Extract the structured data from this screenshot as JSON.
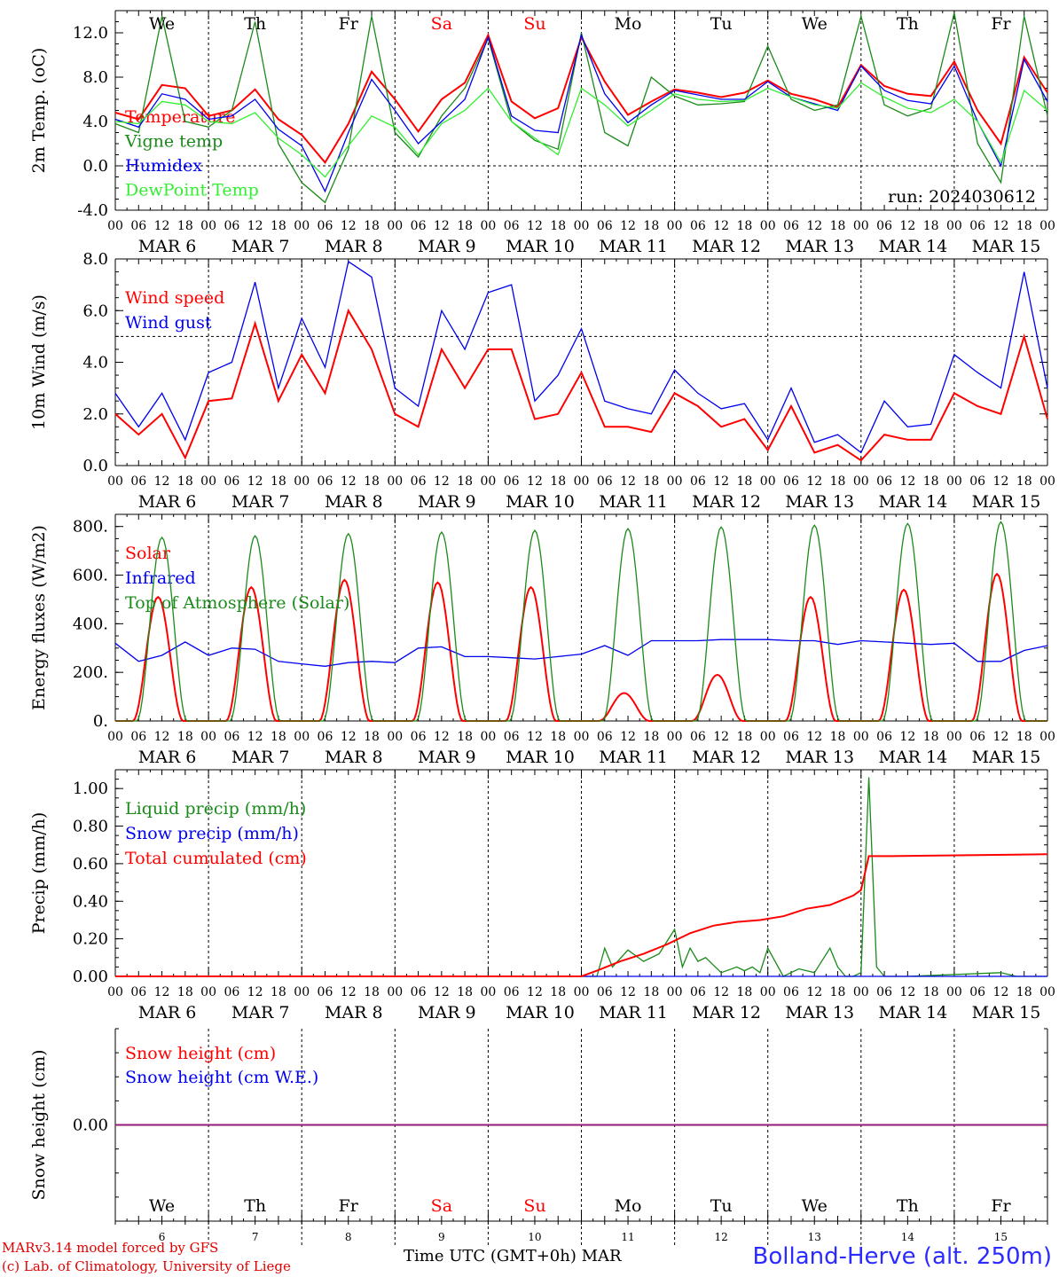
{
  "meta": {
    "run": "run: 2024030612",
    "credit_line1": "MARv3.14 model forced by GFS",
    "credit_line2": "(c) Lab. of Climatology, University of Liege",
    "time_axis_label": "Time UTC (GMT+0h) MAR",
    "station": "Bolland-Herve (alt. 250m)"
  },
  "days": [
    {
      "abbr": "We",
      "month": "MAR",
      "num": "6",
      "weekend": false
    },
    {
      "abbr": "Th",
      "month": "MAR",
      "num": "7",
      "weekend": false
    },
    {
      "abbr": "Fr",
      "month": "MAR",
      "num": "8",
      "weekend": false
    },
    {
      "abbr": "Sa",
      "month": "MAR",
      "num": "9",
      "weekend": true
    },
    {
      "abbr": "Su",
      "month": "MAR",
      "num": "10",
      "weekend": true
    },
    {
      "abbr": "Mo",
      "month": "MAR",
      "num": "11",
      "weekend": false
    },
    {
      "abbr": "Tu",
      "month": "MAR",
      "num": "12",
      "weekend": false
    },
    {
      "abbr": "We",
      "month": "MAR",
      "num": "13",
      "weekend": false
    },
    {
      "abbr": "Th",
      "month": "MAR",
      "num": "14",
      "weekend": false
    },
    {
      "abbr": "Fr",
      "month": "MAR",
      "num": "15",
      "weekend": false
    }
  ],
  "hour_ticks": [
    "00",
    "06",
    "12",
    "18"
  ],
  "colors": {
    "red": "#ff0000",
    "green": "#1a8a1a",
    "blue": "#0000ee",
    "lightgreen": "#33ee33",
    "purple": "#882288"
  },
  "chart_data": [
    {
      "type": "line",
      "id": "temp",
      "ylabel": "2m Temp. (oC)",
      "ylim": [
        -4,
        14
      ],
      "yticks": [
        "-4.0",
        "0.0",
        "4.0",
        "8.0",
        "12.0"
      ],
      "ytick_values": [
        -4,
        0,
        4,
        8,
        12
      ],
      "dashed_ref": 0,
      "x_unit": "hours since MAR 6 00 UTC",
      "series": [
        {
          "name": "Temperature",
          "color": "red",
          "x": [
            0,
            6,
            12,
            18,
            24,
            30,
            36,
            42,
            48,
            54,
            60,
            66,
            72,
            78,
            84,
            90,
            96,
            102,
            108,
            114,
            120,
            126,
            132,
            138,
            144,
            150,
            156,
            162,
            168,
            174,
            180,
            186,
            192,
            198,
            204,
            210,
            216,
            222,
            228,
            234,
            240
          ],
          "y": [
            4.8,
            4.2,
            7.3,
            7.0,
            4.5,
            5.0,
            6.9,
            4.2,
            2.8,
            0.3,
            3.8,
            8.5,
            6.0,
            3.1,
            6.0,
            7.5,
            11.8,
            5.8,
            4.3,
            5.2,
            11.6,
            7.6,
            4.6,
            5.8,
            6.9,
            6.6,
            6.2,
            6.6,
            7.7,
            6.5,
            6.0,
            5.3,
            9.1,
            7.2,
            6.5,
            6.3,
            9.4,
            5.0,
            2.0,
            9.8,
            6.6
          ]
        },
        {
          "name": "Vigne temp",
          "color": "green",
          "x": [
            0,
            6,
            12,
            18,
            24,
            30,
            36,
            42,
            48,
            54,
            60,
            66,
            72,
            78,
            84,
            90,
            96,
            102,
            108,
            114,
            120,
            126,
            132,
            138,
            144,
            150,
            156,
            162,
            168,
            174,
            180,
            186,
            192,
            198,
            204,
            210,
            216,
            222,
            228,
            234,
            240
          ],
          "y": [
            3.8,
            3.0,
            13.5,
            4.0,
            3.5,
            5.0,
            13.0,
            2.0,
            -1.5,
            -3.3,
            1.5,
            13.5,
            3.0,
            0.8,
            4.5,
            7.0,
            11.5,
            4.0,
            2.3,
            1.5,
            12.0,
            3.0,
            1.8,
            8.0,
            6.3,
            5.5,
            5.6,
            5.8,
            10.8,
            6.0,
            5.0,
            5.5,
            13.5,
            5.5,
            4.5,
            5.2,
            13.8,
            2.0,
            -1.5,
            13.5,
            4.5
          ]
        },
        {
          "name": "Humidex",
          "color": "blue",
          "x": [
            0,
            6,
            12,
            18,
            24,
            30,
            36,
            42,
            48,
            54,
            60,
            66,
            72,
            78,
            84,
            90,
            96,
            102,
            108,
            114,
            120,
            126,
            132,
            138,
            144,
            150,
            156,
            162,
            168,
            174,
            180,
            186,
            192,
            198,
            204,
            210,
            216,
            222,
            228,
            234,
            240
          ],
          "y": [
            4.2,
            3.5,
            6.5,
            6.0,
            4.2,
            4.5,
            6.0,
            3.3,
            1.8,
            -2.3,
            3.0,
            7.8,
            5.0,
            2.0,
            4.0,
            6.0,
            11.6,
            4.5,
            3.2,
            3.0,
            11.8,
            6.5,
            3.9,
            5.5,
            6.8,
            6.4,
            6.0,
            6.0,
            7.6,
            6.2,
            5.6,
            5.0,
            9.0,
            6.8,
            5.9,
            5.6,
            9.0,
            4.0,
            0.0,
            9.6,
            5.8
          ]
        },
        {
          "name": "DewPoint Temp",
          "color": "lightgreen",
          "x": [
            0,
            6,
            12,
            18,
            24,
            30,
            36,
            42,
            48,
            54,
            60,
            66,
            72,
            78,
            84,
            90,
            96,
            102,
            108,
            114,
            120,
            126,
            132,
            138,
            144,
            150,
            156,
            162,
            168,
            174,
            180,
            186,
            192,
            198,
            204,
            210,
            216,
            222,
            228,
            234,
            240
          ],
          "y": [
            4.0,
            3.8,
            5.8,
            5.5,
            4.0,
            3.8,
            4.8,
            2.5,
            1.0,
            -1.0,
            1.8,
            4.5,
            3.5,
            1.0,
            3.8,
            5.0,
            7.0,
            4.0,
            2.5,
            1.0,
            7.0,
            5.5,
            3.6,
            5.0,
            6.5,
            6.0,
            5.8,
            5.9,
            7.0,
            6.2,
            5.5,
            5.2,
            7.5,
            6.2,
            5.2,
            4.8,
            6.0,
            4.0,
            0.3,
            6.8,
            5.0
          ]
        }
      ]
    },
    {
      "type": "line",
      "id": "wind",
      "ylabel": "10m Wind (m/s)",
      "ylim": [
        0,
        8
      ],
      "yticks": [
        "0.0",
        "2.0",
        "4.0",
        "6.0",
        "8.0"
      ],
      "ytick_values": [
        0,
        2,
        4,
        6,
        8
      ],
      "dashed_ref": 5,
      "x_unit": "hours since MAR 6 00 UTC",
      "series": [
        {
          "name": "Wind speed",
          "color": "red",
          "x": [
            0,
            6,
            12,
            18,
            24,
            30,
            36,
            42,
            48,
            54,
            60,
            66,
            72,
            78,
            84,
            90,
            96,
            102,
            108,
            114,
            120,
            126,
            132,
            138,
            144,
            150,
            156,
            162,
            168,
            174,
            180,
            186,
            192,
            198,
            204,
            210,
            216,
            222,
            228,
            234,
            240
          ],
          "y": [
            2.0,
            1.2,
            2.0,
            0.3,
            2.5,
            2.6,
            5.5,
            2.5,
            4.3,
            2.8,
            6.0,
            4.5,
            2.0,
            1.5,
            4.5,
            3.0,
            4.5,
            4.5,
            1.8,
            2.0,
            3.6,
            1.5,
            1.5,
            1.3,
            2.8,
            2.3,
            1.5,
            1.8,
            0.6,
            2.3,
            0.5,
            0.8,
            0.2,
            1.2,
            1.0,
            1.0,
            2.8,
            2.3,
            2.0,
            5.0,
            1.8
          ]
        },
        {
          "name": "Wind gust",
          "color": "blue",
          "x": [
            0,
            6,
            12,
            18,
            24,
            30,
            36,
            42,
            48,
            54,
            60,
            66,
            72,
            78,
            84,
            90,
            96,
            102,
            108,
            114,
            120,
            126,
            132,
            138,
            144,
            150,
            156,
            162,
            168,
            174,
            180,
            186,
            192,
            198,
            204,
            210,
            216,
            222,
            228,
            234,
            240
          ],
          "y": [
            2.8,
            1.5,
            2.8,
            1.0,
            3.6,
            4.0,
            7.1,
            3.0,
            5.7,
            3.8,
            7.9,
            7.3,
            3.0,
            2.3,
            6.0,
            4.5,
            6.7,
            7.0,
            2.5,
            3.5,
            5.3,
            2.5,
            2.2,
            2.0,
            3.7,
            2.8,
            2.2,
            2.4,
            1.0,
            3.0,
            0.9,
            1.2,
            0.5,
            2.5,
            1.5,
            1.6,
            4.3,
            3.6,
            3.0,
            7.5,
            3.0
          ]
        }
      ]
    },
    {
      "type": "line",
      "id": "flux",
      "ylabel": "Energy fluxes (W/m2)",
      "ylim": [
        0,
        850
      ],
      "yticks": [
        "0.",
        "200.",
        "400.",
        "600.",
        "800."
      ],
      "ytick_values": [
        0,
        200,
        400,
        600,
        800
      ],
      "x_unit": "hours since MAR 6 00 UTC",
      "series": [
        {
          "name": "Solar",
          "color": "red",
          "peaks": [
            {
              "hour": 11,
              "value": 510
            },
            {
              "hour": 35,
              "value": 550
            },
            {
              "hour": 59,
              "value": 580
            },
            {
              "hour": 83,
              "value": 570
            },
            {
              "hour": 107,
              "value": 550
            },
            {
              "hour": 131,
              "value": 115
            },
            {
              "hour": 155,
              "value": 190
            },
            {
              "hour": 179,
              "value": 510
            },
            {
              "hour": 203,
              "value": 540
            },
            {
              "hour": 227,
              "value": 605
            }
          ]
        },
        {
          "name": "Infrared",
          "color": "blue",
          "x": [
            0,
            6,
            12,
            18,
            24,
            30,
            36,
            42,
            48,
            54,
            60,
            66,
            72,
            78,
            84,
            90,
            96,
            102,
            108,
            114,
            120,
            126,
            132,
            138,
            144,
            150,
            156,
            162,
            168,
            174,
            180,
            186,
            192,
            198,
            204,
            210,
            216,
            222,
            228,
            234,
            240
          ],
          "y": [
            320,
            245,
            270,
            325,
            270,
            300,
            295,
            245,
            235,
            225,
            240,
            245,
            240,
            300,
            305,
            265,
            265,
            260,
            255,
            265,
            275,
            310,
            270,
            330,
            330,
            330,
            335,
            335,
            335,
            330,
            330,
            315,
            330,
            325,
            320,
            315,
            320,
            245,
            245,
            290,
            310
          ]
        },
        {
          "name": "Top of Atmosphere (Solar)",
          "color": "green",
          "peaks": [
            {
              "hour": 12,
              "value": 755
            },
            {
              "hour": 36,
              "value": 762
            },
            {
              "hour": 60,
              "value": 770
            },
            {
              "hour": 84,
              "value": 777
            },
            {
              "hour": 108,
              "value": 784
            },
            {
              "hour": 132,
              "value": 791
            },
            {
              "hour": 156,
              "value": 798
            },
            {
              "hour": 180,
              "value": 805
            },
            {
              "hour": 204,
              "value": 812
            },
            {
              "hour": 228,
              "value": 819
            }
          ]
        }
      ]
    },
    {
      "type": "line",
      "id": "precip",
      "ylabel": "Precip (mm/h)",
      "ylim": [
        0,
        1.1
      ],
      "yticks": [
        "0.00",
        "0.20",
        "0.40",
        "0.60",
        "0.80",
        "1.00"
      ],
      "ytick_values": [
        0,
        0.2,
        0.4,
        0.6,
        0.8,
        1.0
      ],
      "x_unit": "hours since MAR 6 00 UTC",
      "series": [
        {
          "name": "Liquid precip (mm/h)",
          "color": "green",
          "x": [
            0,
            120,
            124,
            126,
            128,
            132,
            136,
            140,
            144,
            146,
            148,
            150,
            152,
            156,
            160,
            162,
            164,
            166,
            168,
            172,
            176,
            180,
            184,
            186,
            188,
            190,
            192,
            194,
            196,
            198,
            200,
            204,
            228,
            232,
            240
          ],
          "y": [
            0.0,
            0.0,
            0.0,
            0.15,
            0.05,
            0.14,
            0.08,
            0.12,
            0.25,
            0.05,
            0.15,
            0.08,
            0.1,
            0.02,
            0.05,
            0.03,
            0.05,
            0.02,
            0.15,
            0.0,
            0.04,
            0.02,
            0.15,
            0.05,
            0.0,
            0.0,
            0.02,
            1.06,
            0.05,
            0.0,
            0.0,
            0.0,
            0.02,
            0.0,
            0.0
          ]
        },
        {
          "name": "Snow precip (mm/h)",
          "color": "blue",
          "x": [
            0,
            240
          ],
          "y": [
            0.0,
            0.0
          ]
        },
        {
          "name": "Total cumulated (cm)",
          "color": "red",
          "x": [
            0,
            120,
            124,
            130,
            136,
            142,
            148,
            154,
            160,
            166,
            172,
            178,
            184,
            190,
            192,
            194,
            200,
            240
          ],
          "y": [
            0.0,
            0.0,
            0.03,
            0.08,
            0.12,
            0.17,
            0.23,
            0.27,
            0.29,
            0.3,
            0.32,
            0.36,
            0.38,
            0.43,
            0.46,
            0.64,
            0.64,
            0.65
          ]
        }
      ]
    },
    {
      "type": "line",
      "id": "snow",
      "ylabel": "Snow height (cm)",
      "ylim": [
        -1,
        1
      ],
      "yticks": [
        "0.00"
      ],
      "ytick_values": [
        0
      ],
      "x_unit": "hours since MAR 6 00 UTC",
      "series": [
        {
          "name": "Snow height (cm)",
          "color": "red",
          "x": [
            0,
            240
          ],
          "y": [
            0,
            0
          ]
        },
        {
          "name": "Snow height (cm W.E.)",
          "color": "blue",
          "x": [
            0,
            240
          ],
          "y": [
            0,
            0
          ]
        }
      ]
    }
  ]
}
